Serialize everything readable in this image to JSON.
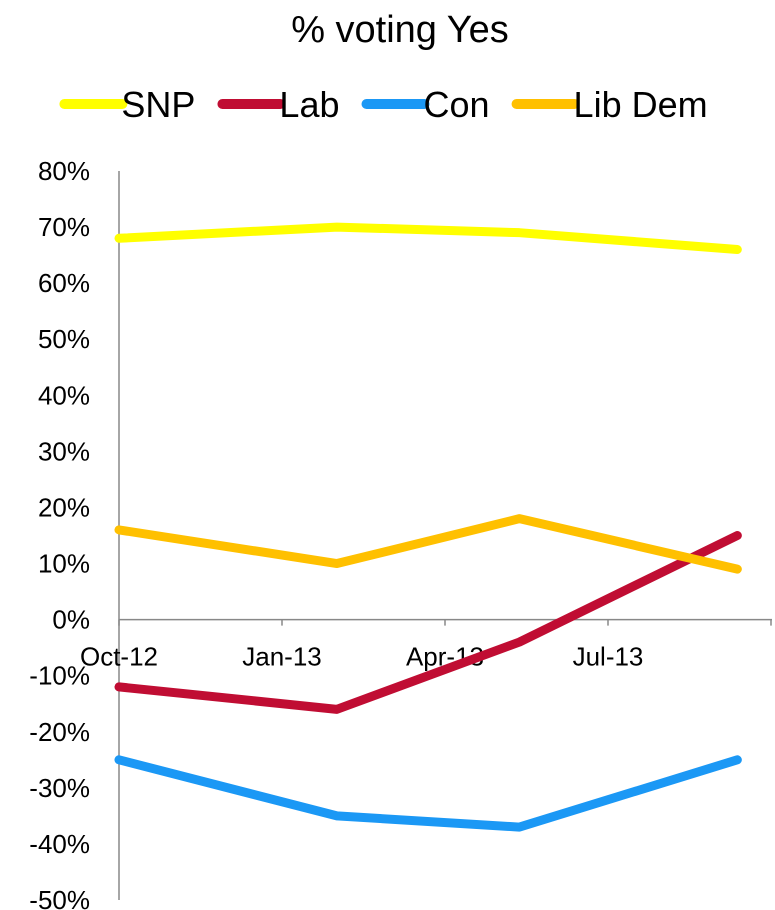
{
  "chart_data": {
    "type": "line",
    "title": "% voting Yes",
    "xlabel": "",
    "ylabel": "",
    "ylim": [
      -0.5,
      0.8
    ],
    "y_ticks": [
      "80%",
      "70%",
      "60%",
      "50%",
      "40%",
      "30%",
      "20%",
      "10%",
      "0%",
      "-10%",
      "-20%",
      "-30%",
      "-40%",
      "-50%"
    ],
    "x_ticks": [
      "Oct-12",
      "Jan-13",
      "Apr-13",
      "Jul-13"
    ],
    "x": [
      "2012-10-01",
      "2013-02-01",
      "2013-05-15",
      "2013-09-15"
    ],
    "legend_position": "top",
    "grid": false,
    "series": [
      {
        "name": "SNP",
        "color": "#FFFF00",
        "values": [
          0.68,
          0.7,
          0.69,
          0.66
        ]
      },
      {
        "name": "Lab",
        "color": "#C00D33",
        "values": [
          -0.12,
          -0.16,
          -0.04,
          0.15
        ]
      },
      {
        "name": "Con",
        "color": "#1B98F5",
        "values": [
          -0.25,
          -0.35,
          -0.37,
          -0.25
        ]
      },
      {
        "name": "Lib Dem",
        "color": "#FFC000",
        "values": [
          0.16,
          0.1,
          0.18,
          0.09
        ]
      }
    ]
  }
}
